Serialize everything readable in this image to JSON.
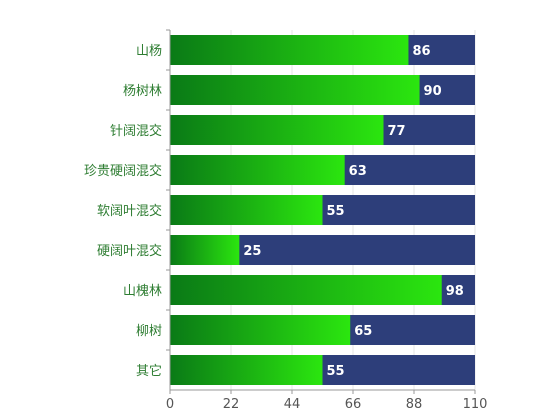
{
  "chart_data": {
    "type": "bar",
    "orientation": "horizontal",
    "stacked_background": true,
    "title": "",
    "xlabel": "",
    "ylabel": "",
    "categories": [
      "山杨",
      "杨树林",
      "针阔混交",
      "珍贵硬阔混交",
      "软阔叶混交",
      "硬阔叶混交",
      "山槐林",
      "柳树",
      "其它"
    ],
    "values": [
      86,
      90,
      77,
      63,
      55,
      25,
      98,
      65,
      55
    ],
    "background_value": 110,
    "xlim": [
      0,
      110
    ],
    "xticks": [
      0,
      22,
      44,
      66,
      88,
      110
    ],
    "grid": true,
    "legend": "none",
    "colors": {
      "bar_gradient_start": "#0a7a16",
      "bar_gradient_end": "#2be60f",
      "background_bar": "#2d3e7a",
      "category_label": "#2e7d32",
      "tick_label": "#555555",
      "value_label": "#ffffff",
      "axis_line": "#999999",
      "grid_line": "#e6e6e6"
    }
  }
}
